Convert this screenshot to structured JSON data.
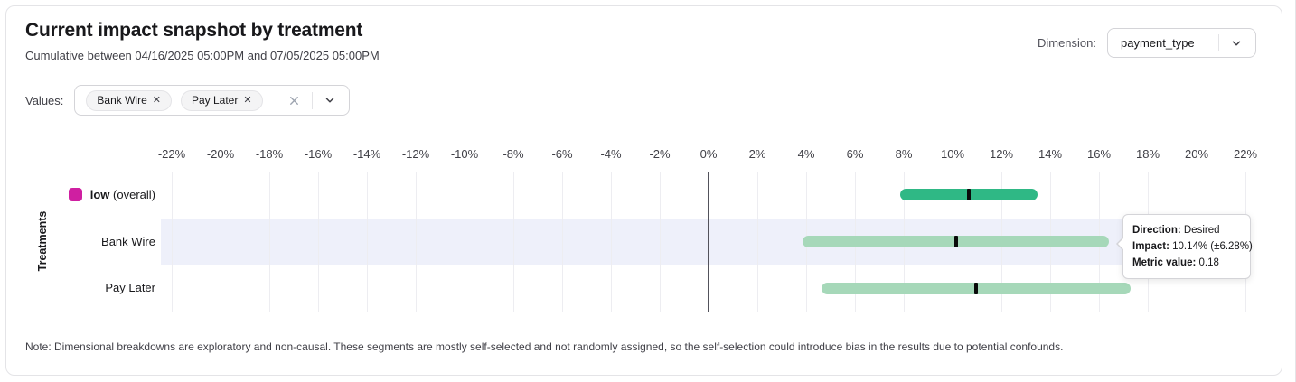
{
  "header": {
    "title": "Current impact snapshot by treatment",
    "subtitle": "Cumulative between 04/16/2025 05:00PM and 07/05/2025 05:00PM"
  },
  "dimension_control": {
    "label": "Dimension:",
    "value": "payment_type",
    "chevron_icon": "chevron-down"
  },
  "values_control": {
    "label": "Values:",
    "chips": [
      "Bank Wire",
      "Pay Later"
    ],
    "chip_remove_icon": "x-mark",
    "clear_all_icon": "x-mark",
    "chevron_icon": "chevron-down"
  },
  "chart_data": {
    "type": "interval_bar",
    "orientation": "horizontal",
    "ylabel": "Treatments",
    "x_tick_unit": "%",
    "x_ticks": [
      -22,
      -20,
      -18,
      -16,
      -14,
      -12,
      -10,
      -8,
      -6,
      -4,
      -2,
      0,
      2,
      4,
      6,
      8,
      10,
      12,
      14,
      16,
      18,
      20,
      22
    ],
    "xlim": [
      -23,
      23
    ],
    "grid": true,
    "zero_line": true,
    "rows": [
      {
        "label": "low (overall)",
        "label_bold": "low",
        "label_rest": " (overall)",
        "legend_color": "#cf1fa1",
        "bar_color": "#2fb885",
        "impact_pct": 10.65,
        "ci_low_pct": 7.85,
        "ci_high_pct": 13.48,
        "highlighted": false
      },
      {
        "label": "Bank Wire",
        "label_bold": "",
        "label_rest": "Bank Wire",
        "legend_color": null,
        "bar_color": "#a6d8b9",
        "impact_pct": 10.14,
        "ci_low_pct": 3.86,
        "ci_high_pct": 16.42,
        "highlighted": true
      },
      {
        "label": "Pay Later",
        "label_bold": "",
        "label_rest": "Pay Later",
        "legend_color": null,
        "bar_color": "#a6d8b9",
        "impact_pct": 10.96,
        "ci_low_pct": 4.63,
        "ci_high_pct": 17.29,
        "highlighted": false
      }
    ]
  },
  "tooltip": {
    "rows": [
      {
        "label": "Direction:",
        "value": "Desired"
      },
      {
        "label": "Impact:",
        "value": "10.14% (±6.28%)"
      },
      {
        "label": "Metric value:",
        "value": "0.18"
      }
    ]
  },
  "note": "Note: Dimensional breakdowns are exploratory and non-causal. These segments are mostly self-selected and not randomly assigned, so the self-selection could introduce bias in the results due to potential confounds.",
  "colors": {
    "accent_green_dark": "#2fb885",
    "accent_green_light": "#a6d8b9",
    "legend_magenta": "#cf1fa1",
    "highlight_band": "#eef0fa",
    "marker_black": "#0a0a0a",
    "zero_line": "#52525b",
    "gridline": "#ededf1"
  }
}
